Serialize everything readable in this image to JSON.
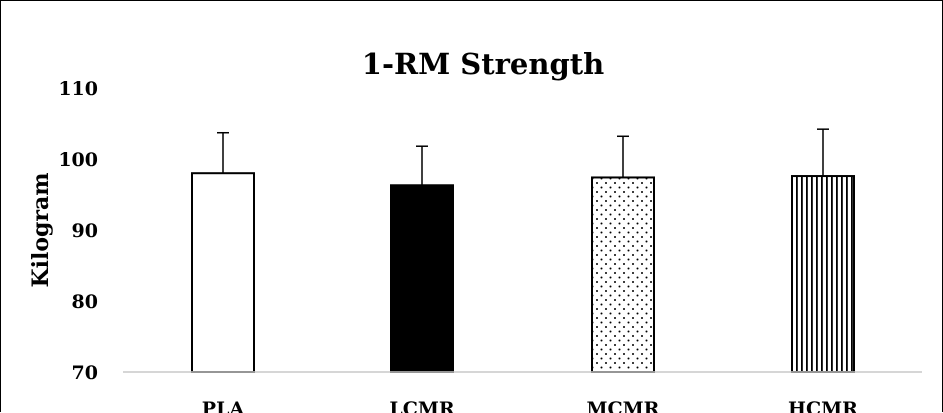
{
  "chart_data": {
    "type": "bar",
    "title": "1-RM Strength",
    "xlabel": "",
    "ylabel": "Kilogram",
    "categories": [
      "PLA",
      "LCMR",
      "MCMR",
      "HCMR"
    ],
    "series": [
      {
        "values": [
          98.0,
          96.3,
          97.4,
          97.6
        ],
        "error": [
          5.7,
          5.5,
          5.8,
          6.6
        ],
        "fills": [
          "white",
          "black",
          "dots",
          "vertical-stripes"
        ]
      }
    ],
    "yticks": [
      70,
      80,
      90,
      100,
      110
    ],
    "ylim": [
      70,
      110
    ],
    "grid": false,
    "legend": "none"
  }
}
